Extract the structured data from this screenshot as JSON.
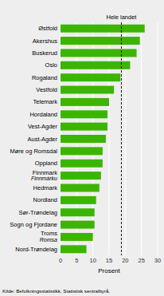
{
  "chart_data": {
    "type": "bar",
    "orientation": "horizontal",
    "categories": [
      "Nord-Trøndelag",
      "Troms",
      "Sogn og Fjordane",
      "Sør-Trøndelag",
      "Nordland",
      "Hedmark",
      "Finnmark",
      "Oppland",
      "Møre og Romsdal",
      "Aust-Agder",
      "Vest-Agder",
      "Hordaland",
      "Telemark",
      "Vestfold",
      "Rogaland",
      "Oslo",
      "Buskerud",
      "Akershus",
      "Østfold"
    ],
    "values": [
      8.0,
      10.0,
      10.5,
      10.5,
      11.0,
      12.0,
      12.5,
      13.0,
      13.0,
      14.0,
      14.5,
      14.5,
      15.0,
      16.5,
      18.5,
      21.5,
      23.5,
      24.5,
      26.0
    ],
    "color": "#3cb500",
    "background_color": "#eeeeee",
    "xlabel": "Prosent",
    "xlim": [
      0,
      30
    ],
    "xticks": [
      0,
      5,
      10,
      15,
      20,
      25,
      30
    ],
    "grid": true,
    "annotations": [
      {
        "text": "Romsa",
        "category": "Troms"
      },
      {
        "text": "Finnmárku",
        "category": "Finnmark"
      },
      {
        "text": "Hele landet",
        "x": 18.8
      }
    ],
    "footnote": "Kilde: Befolkningsstatistikk, Statistisk sentralbyrå."
  }
}
